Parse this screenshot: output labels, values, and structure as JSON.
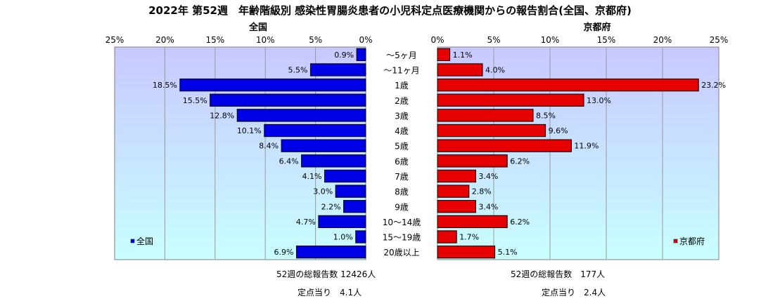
{
  "title": "2022年 第52週　年齢階級別 感染性胃腸炎患者の小児科定点医療機関からの報告割合(全国、京都府)",
  "colors": {
    "national": "#0000e6",
    "kyoto": "#e60000",
    "plot_gradient_top": "#c8c8ff",
    "plot_gradient_bottom": "#c8ffff",
    "gridline": "#9a9a9a"
  },
  "chart_data": [
    {
      "type": "bar",
      "orientation": "horizontal",
      "direction": "reversed",
      "title": "全国",
      "xlim": [
        0,
        25
      ],
      "ticks": [
        "0%",
        "5%",
        "10%",
        "15%",
        "20%",
        "25%"
      ],
      "tick_values": [
        0,
        5,
        10,
        15,
        20,
        25
      ],
      "categories": [
        "～5ヶ月",
        "～11ヶ月",
        "1歳",
        "2歳",
        "3歳",
        "4歳",
        "5歳",
        "6歳",
        "7歳",
        "8歳",
        "9歳",
        "10～14歳",
        "15～19歳",
        "20歳以上"
      ],
      "series": [
        {
          "name": "全国",
          "values": [
            0.9,
            5.5,
            18.5,
            15.5,
            12.8,
            10.1,
            8.4,
            6.4,
            4.1,
            3.0,
            2.2,
            4.7,
            1.0,
            6.9
          ],
          "labels": [
            "0.9%",
            "5.5%",
            "18.5%",
            "15.5%",
            "12.8%",
            "10.1%",
            "8.4%",
            "6.4%",
            "4.1%",
            "3.0%",
            "2.2%",
            "4.7%",
            "1.0%",
            "6.9%"
          ]
        }
      ],
      "legend": "bottom-left"
    },
    {
      "type": "bar",
      "orientation": "horizontal",
      "title": "京都府",
      "xlim": [
        0,
        25
      ],
      "ticks": [
        "0%",
        "5%",
        "10%",
        "15%",
        "20%",
        "25%"
      ],
      "tick_values": [
        0,
        5,
        10,
        15,
        20,
        25
      ],
      "categories": [
        "～5ヶ月",
        "～11ヶ月",
        "1歳",
        "2歳",
        "3歳",
        "4歳",
        "5歳",
        "6歳",
        "7歳",
        "8歳",
        "9歳",
        "10～14歳",
        "15～19歳",
        "20歳以上"
      ],
      "series": [
        {
          "name": "京都府",
          "values": [
            1.1,
            4.0,
            23.2,
            13.0,
            8.5,
            9.6,
            11.9,
            6.2,
            3.4,
            2.8,
            3.4,
            6.2,
            1.7,
            5.1
          ],
          "labels": [
            "1.1%",
            "4.0%",
            "23.2%",
            "13.0%",
            "8.5%",
            "9.6%",
            "11.9%",
            "6.2%",
            "3.4%",
            "2.8%",
            "3.4%",
            "6.2%",
            "1.7%",
            "5.1%"
          ]
        }
      ],
      "legend": "bottom-right"
    }
  ],
  "notes": {
    "national_total": "52週の総報告数 12426人",
    "national_per_point": "定点当り　4.1人",
    "kyoto_total": "52週の総報告数　177人",
    "kyoto_per_point": "定点当り　2.4人"
  }
}
